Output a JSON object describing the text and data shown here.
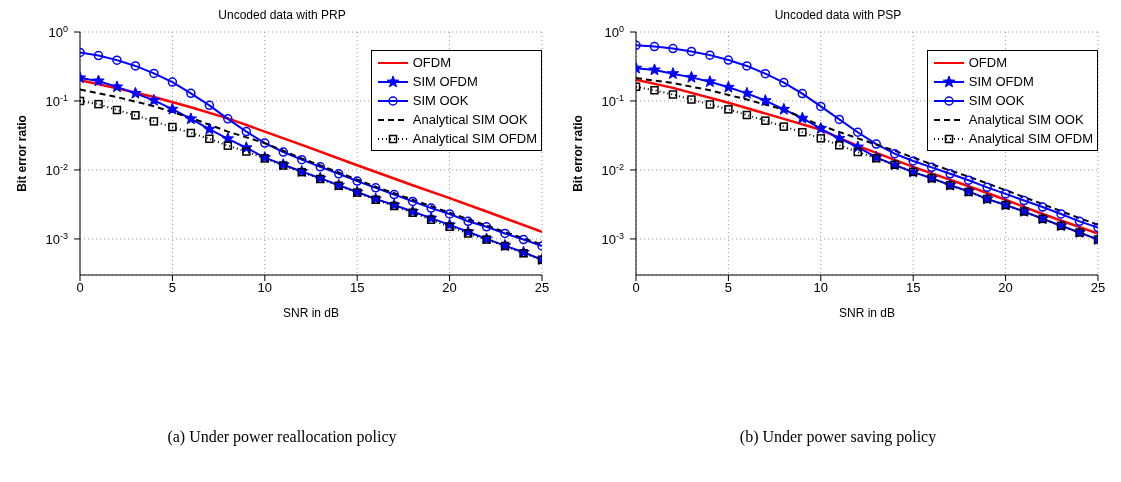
{
  "chart_data": [
    {
      "type": "line",
      "title": "Uncoded data with PRP",
      "xlabel": "SNR in dB",
      "ylabel": "Bit error ratio",
      "log": "y",
      "grid": true,
      "legend": "top right",
      "xlim": [
        0,
        25
      ],
      "xticks": [
        0,
        5,
        10,
        15,
        20,
        25
      ],
      "ylim": [
        0.0003,
        1
      ],
      "yticks": [
        {
          "value": 0.001,
          "label": "10$^{-3}$"
        },
        {
          "value": 0.01,
          "label": "10$^{-2}$"
        },
        {
          "value": 0.1,
          "label": "10$^{-1}$"
        },
        {
          "value": 1,
          "label": "10$^{0}$"
        }
      ],
      "annotations": [
        "(a) Under power reallocation policy"
      ],
      "x": [
        0,
        1,
        2,
        3,
        4,
        5,
        6,
        7,
        8,
        9,
        10,
        11,
        12,
        13,
        14,
        15,
        16,
        17,
        18,
        19,
        20,
        21,
        22,
        23,
        24,
        25
      ],
      "series": [
        {
          "name": "OFDM",
          "color": "#ff0000",
          "marker": "none",
          "line_style": "solid",
          "x": [
            0,
            2,
            4,
            6,
            8,
            10,
            12,
            15,
            18,
            20,
            22,
            25
          ],
          "values": [
            0.2,
            0.153,
            0.114,
            0.081,
            0.056,
            0.036,
            0.0231,
            0.0117,
            0.006,
            0.0039,
            0.0025,
            0.00127
          ]
        },
        {
          "name": "SIM OFDM",
          "color": "#0000ff",
          "marker": "star",
          "line_style": "solid",
          "values": [
            0.216,
            0.195,
            0.16,
            0.129,
            0.102,
            0.076,
            0.055,
            0.039,
            0.0283,
            0.021,
            0.0151,
            0.0119,
            0.0095,
            0.0076,
            0.006,
            0.0048,
            0.0038,
            0.0031,
            0.0025,
            0.002,
            0.0016,
            0.00127,
            0.001,
            0.0008,
            0.00064,
            0.0005
          ]
        },
        {
          "name": "SIM OOK",
          "color": "#0000ff",
          "marker": "circle",
          "line_style": "solid",
          "values": [
            0.506,
            0.456,
            0.391,
            0.322,
            0.251,
            0.188,
            0.129,
            0.0865,
            0.0551,
            0.036,
            0.0245,
            0.0182,
            0.0141,
            0.0111,
            0.0088,
            0.0069,
            0.0055,
            0.0044,
            0.0035,
            0.0028,
            0.0023,
            0.0018,
            0.0015,
            0.0012,
            0.00098,
            0.00079
          ]
        },
        {
          "name": "Analytical SIM OOK",
          "color": "#000000",
          "marker": "none",
          "line_style": "dashed",
          "x": [
            0,
            2,
            4,
            6,
            8,
            10,
            12,
            14,
            16,
            18,
            20,
            22,
            24,
            25
          ],
          "values": [
            0.147,
            0.114,
            0.084,
            0.057,
            0.036,
            0.0245,
            0.0147,
            0.0092,
            0.0057,
            0.0037,
            0.0024,
            0.00156,
            0.00102,
            0.00083
          ]
        },
        {
          "name": "Analytical SIM OFDM",
          "color": "#000000",
          "marker": "square",
          "line_style": "dotted",
          "values": [
            0.1,
            0.09,
            0.074,
            0.062,
            0.0506,
            0.042,
            0.0344,
            0.0283,
            0.0225,
            0.0185,
            0.0147,
            0.0116,
            0.0093,
            0.0074,
            0.0059,
            0.0047,
            0.0037,
            0.003,
            0.0024,
            0.0019,
            0.0015,
            0.0012,
            0.00098,
            0.00079,
            0.00062,
            0.0005
          ]
        }
      ]
    },
    {
      "type": "line",
      "title": "Uncoded data with PSP",
      "xlabel": "SNR in dB",
      "ylabel": "Bit error ratio",
      "log": "y",
      "grid": true,
      "legend": "top right",
      "xlim": [
        0,
        25
      ],
      "xticks": [
        0,
        5,
        10,
        15,
        20,
        25
      ],
      "ylim": [
        0.0003,
        1
      ],
      "yticks": [
        {
          "value": 0.001,
          "label": "10$^{-3}$"
        },
        {
          "value": 0.01,
          "label": "10$^{-2}$"
        },
        {
          "value": 0.1,
          "label": "10$^{-1}$"
        },
        {
          "value": 1,
          "label": "10$^{0}$"
        }
      ],
      "annotations": [
        "(b) Under power saving policy"
      ],
      "x": [
        0,
        1,
        2,
        3,
        4,
        5,
        6,
        7,
        8,
        9,
        10,
        11,
        12,
        13,
        14,
        15,
        16,
        17,
        18,
        19,
        20,
        21,
        22,
        23,
        24,
        25
      ],
      "series": [
        {
          "name": "OFDM",
          "color": "#ff0000",
          "marker": "none",
          "line_style": "solid",
          "x": [
            0,
            2,
            5,
            8,
            10,
            12,
            15,
            18,
            20,
            22,
            25
          ],
          "values": [
            0.203,
            0.155,
            0.094,
            0.055,
            0.0382,
            0.0224,
            0.0111,
            0.0058,
            0.0037,
            0.0023,
            0.0012
          ]
        },
        {
          "name": "SIM OFDM",
          "color": "#0000ff",
          "marker": "star",
          "line_style": "solid",
          "values": [
            0.299,
            0.282,
            0.249,
            0.22,
            0.19,
            0.158,
            0.129,
            0.101,
            0.0756,
            0.0562,
            0.0398,
            0.0287,
            0.0215,
            0.0152,
            0.0118,
            0.0093,
            0.0076,
            0.006,
            0.0049,
            0.0038,
            0.0031,
            0.0025,
            0.00196,
            0.00155,
            0.00124,
            0.00098
          ]
        },
        {
          "name": "SIM OOK",
          "color": "#0000ff",
          "marker": "circle",
          "line_style": "solid",
          "values": [
            0.641,
            0.615,
            0.576,
            0.522,
            0.462,
            0.392,
            0.322,
            0.249,
            0.185,
            0.128,
            0.0834,
            0.054,
            0.0352,
            0.0237,
            0.0172,
            0.0135,
            0.0109,
            0.0088,
            0.0071,
            0.0056,
            0.0045,
            0.0036,
            0.0029,
            0.0023,
            0.0018,
            0.00146
          ]
        },
        {
          "name": "Analytical SIM OOK",
          "color": "#000000",
          "marker": "none",
          "line_style": "dashed",
          "x": [
            0,
            2,
            4,
            6,
            8,
            10,
            12,
            14,
            16,
            18,
            20,
            22,
            24,
            25
          ],
          "values": [
            0.215,
            0.182,
            0.143,
            0.105,
            0.075,
            0.044,
            0.0287,
            0.019,
            0.0121,
            0.008,
            0.0051,
            0.0032,
            0.002,
            0.0016
          ]
        },
        {
          "name": "Analytical SIM OFDM",
          "color": "#000000",
          "marker": "square",
          "line_style": "dotted",
          "values": [
            0.161,
            0.143,
            0.124,
            0.105,
            0.089,
            0.0756,
            0.0626,
            0.0518,
            0.0425,
            0.0352,
            0.0287,
            0.0228,
            0.0182,
            0.0148,
            0.0119,
            0.0094,
            0.0076,
            0.006,
            0.0048,
            0.0038,
            0.0031,
            0.0025,
            0.00195,
            0.00155,
            0.00124,
            0.00098
          ]
        }
      ]
    }
  ]
}
